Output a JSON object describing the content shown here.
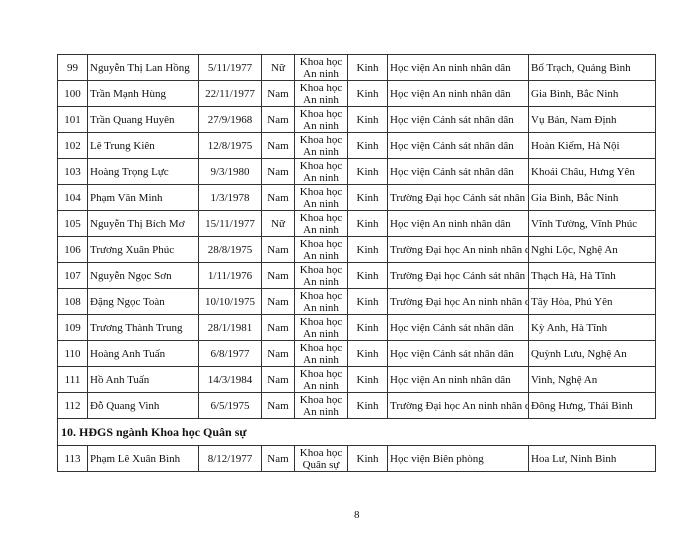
{
  "rows_a": [
    {
      "no": "99",
      "name": "Nguyễn Thị Lan Hồng",
      "dob": "5/11/1977",
      "gender": "Nữ",
      "field": "Khoa học An ninh",
      "ethnic": "Kinh",
      "institution": "Học viện An ninh nhân dân",
      "hometown": "Bố Trạch, Quảng Bình"
    },
    {
      "no": "100",
      "name": "Trần Mạnh Hùng",
      "dob": "22/11/1977",
      "gender": "Nam",
      "field": "Khoa học An ninh",
      "ethnic": "Kinh",
      "institution": "Học viện An ninh nhân dân",
      "hometown": "Gia Bình, Bắc Ninh"
    },
    {
      "no": "101",
      "name": "Trần Quang Huyên",
      "dob": "27/9/1968",
      "gender": "Nam",
      "field": "Khoa học An ninh",
      "ethnic": "Kinh",
      "institution": "Học viện Cảnh sát nhân dân",
      "hometown": "Vụ Bản, Nam Định"
    },
    {
      "no": "102",
      "name": "Lê Trung Kiên",
      "dob": "12/8/1975",
      "gender": "Nam",
      "field": "Khoa học An ninh",
      "ethnic": "Kinh",
      "institution": "Học viện Cảnh sát nhân dân",
      "hometown": "Hoàn Kiếm, Hà Nội"
    },
    {
      "no": "103",
      "name": "Hoàng Trọng Lực",
      "dob": "9/3/1980",
      "gender": "Nam",
      "field": "Khoa học An ninh",
      "ethnic": "Kinh",
      "institution": "Học viện Cảnh sát nhân dân",
      "hometown": "Khoái Châu, Hưng Yên"
    },
    {
      "no": "104",
      "name": "Phạm Văn Minh",
      "dob": "1/3/1978",
      "gender": "Nam",
      "field": "Khoa học An ninh",
      "ethnic": "Kinh",
      "institution": "Trường Đại học Cảnh sát nhân dân",
      "hometown": "Gia Bình, Bắc Ninh"
    },
    {
      "no": "105",
      "name": "Nguyễn Thị Bích Mơ",
      "dob": "15/11/1977",
      "gender": "Nữ",
      "field": "Khoa học An ninh",
      "ethnic": "Kinh",
      "institution": "Học viện An ninh nhân dân",
      "hometown": "Vĩnh Tường, Vĩnh Phúc"
    },
    {
      "no": "106",
      "name": "Trương Xuân Phúc",
      "dob": "28/8/1975",
      "gender": "Nam",
      "field": "Khoa học An ninh",
      "ethnic": "Kinh",
      "institution": "Trường Đại học An ninh nhân dân",
      "hometown": "Nghi Lộc, Nghệ An"
    },
    {
      "no": "107",
      "name": "Nguyễn Ngọc Sơn",
      "dob": "1/11/1976",
      "gender": "Nam",
      "field": "Khoa học An ninh",
      "ethnic": "Kinh",
      "institution": "Trường Đại học Cảnh sát nhân dân",
      "hometown": "Thạch Hà, Hà Tĩnh"
    },
    {
      "no": "108",
      "name": "Đặng Ngọc Toàn",
      "dob": "10/10/1975",
      "gender": "Nam",
      "field": "Khoa học An ninh",
      "ethnic": "Kinh",
      "institution": "Trường Đại học An ninh nhân dân",
      "hometown": "Tây Hòa, Phú Yên"
    },
    {
      "no": "109",
      "name": "Trương Thành Trung",
      "dob": "28/1/1981",
      "gender": "Nam",
      "field": "Khoa học An ninh",
      "ethnic": "Kinh",
      "institution": "Học viện Cảnh sát nhân dân",
      "hometown": "Kỳ Anh, Hà Tĩnh"
    },
    {
      "no": "110",
      "name": "Hoàng Anh Tuấn",
      "dob": "6/8/1977",
      "gender": "Nam",
      "field": "Khoa học An ninh",
      "ethnic": "Kinh",
      "institution": "Học viện Cảnh sát nhân dân",
      "hometown": "Quỳnh Lưu, Nghệ An"
    },
    {
      "no": "111",
      "name": "Hồ Anh Tuấn",
      "dob": "14/3/1984",
      "gender": "Nam",
      "field": "Khoa học An ninh",
      "ethnic": "Kinh",
      "institution": "Học viện An ninh nhân dân",
      "hometown": "Vinh, Nghệ An"
    },
    {
      "no": "112",
      "name": "Đỗ Quang Vinh",
      "dob": "6/5/1975",
      "gender": "Nam",
      "field": "Khoa học An ninh",
      "ethnic": "Kinh",
      "institution": "Trường Đại học An ninh nhân dân",
      "hometown": "Đông Hưng, Thái Bình"
    }
  ],
  "section_title": "10. HĐGS ngành Khoa học Quân sự",
  "rows_b": [
    {
      "no": "113",
      "name": "Phạm Lê Xuân Bình",
      "dob": "8/12/1977",
      "gender": "Nam",
      "field": "Khoa học Quân sự",
      "ethnic": "Kinh",
      "institution": "Học viện Biên phòng",
      "hometown": "Hoa Lư, Ninh Bình"
    }
  ],
  "page_number": "8"
}
